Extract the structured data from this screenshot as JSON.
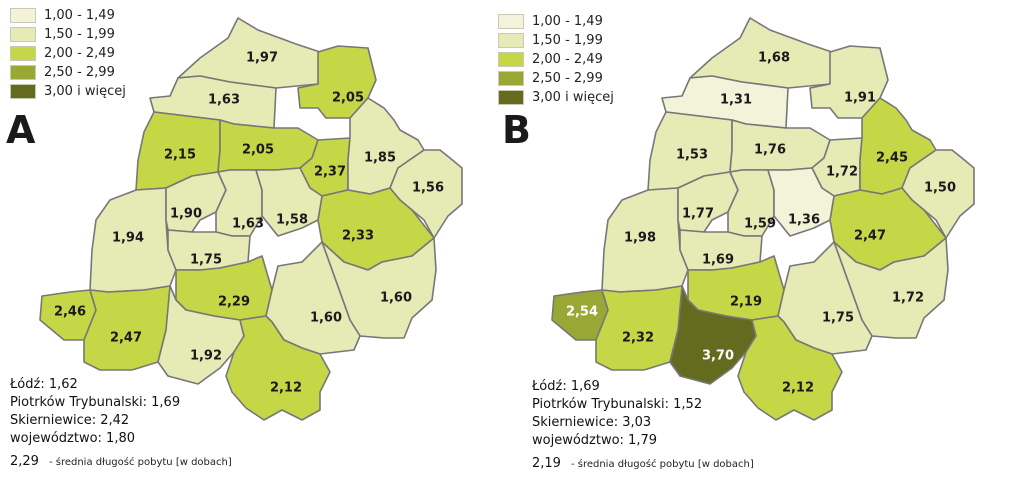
{
  "legend": [
    {
      "label": "1,00 - 1,49",
      "color": "#f3f3da"
    },
    {
      "label": "1,50 - 1,99",
      "color": "#e6eab5"
    },
    {
      "label": "2,00 - 2,49",
      "color": "#c5d646"
    },
    {
      "label": "2,50 - 2,99",
      "color": "#99a834"
    },
    {
      "label": "3,00 i więcej",
      "color": "#646b1f"
    }
  ],
  "panel_a": {
    "letter": "A",
    "values": {
      "top1": "1,97",
      "nw": "1,63",
      "ne_top": "2,05",
      "w_upper": "2,15",
      "center_n": "2,05",
      "c_east": "2,37",
      "e_north": "1,85",
      "east": "1,56",
      "east_mid": "2,33",
      "west": "1,94",
      "lodz_w": "1,90",
      "lodz_c": "1,63",
      "lodz_e": "1,58",
      "lodz_s": "1,75",
      "sw_west": "2,46",
      "sw": "2,47",
      "south_c": "2,29",
      "se": "1,60",
      "se_c": "1,60",
      "s_mid": "1,92",
      "south": "2,12"
    },
    "stats": [
      "Łódź: 1,62",
      "Piotrków Trybunalski: 1,69",
      "Skierniewice: 2,42",
      "województwo: 1,80"
    ],
    "note_value": "2,29",
    "note_text": "- średnia długość pobytu [w dobach]"
  },
  "panel_b": {
    "letter": "B",
    "values": {
      "top1": "1,68",
      "nw": "1,31",
      "ne_top": "1,91",
      "w_upper": "1,53",
      "center_n": "1,76",
      "c_east": "1,72",
      "e_north": "2,45",
      "east": "1,50",
      "east_mid": "2,47",
      "west": "1,98",
      "lodz_w": "1,77",
      "lodz_c": "1,59",
      "lodz_e": "1,36",
      "lodz_s": "1,69",
      "sw_west": "2,54",
      "sw": "2,32",
      "south_c": "2,19",
      "se": "1,72",
      "se_c": "1,75",
      "s_mid": "3,70",
      "south": "2,12"
    },
    "stats": [
      "Łódź: 1,69",
      "Piotrków Trybunalski: 1,52",
      "Skierniewice: 3,03",
      "województwo: 1,79"
    ],
    "note_value": "2,19",
    "note_text": "- średnia długość pobytu [w dobach]"
  }
}
